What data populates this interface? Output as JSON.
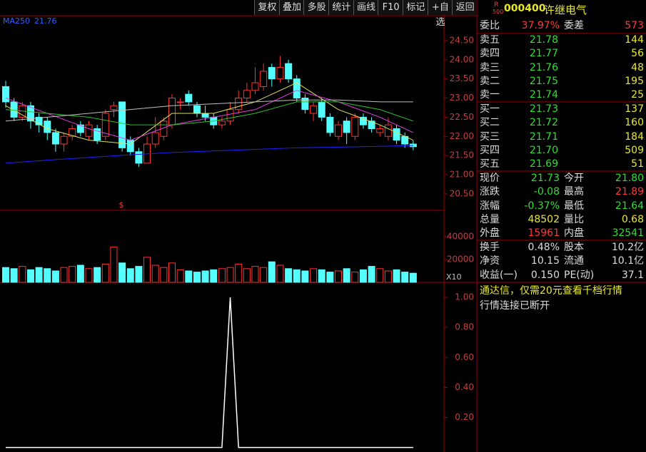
{
  "toolbar": [
    "复权",
    "叠加",
    "多股",
    "统计",
    "画线",
    "F10",
    "标记",
    "+自选",
    "返回"
  ],
  "ma250": {
    "label": "MA250",
    "value": 21.76
  },
  "marker": "$",
  "volume_scale": "X10",
  "chart_data": {
    "type": "candlestick",
    "open": [
      23.3,
      22.9,
      22.5,
      22.8,
      22.5,
      22.4,
      22.1,
      21.8,
      22.0,
      22.3,
      22.0,
      22.2,
      22.0,
      22.7,
      22.9,
      21.9,
      21.6,
      21.3,
      21.8,
      22.0,
      22.3,
      22.9,
      23.1,
      22.8,
      22.6,
      22.5,
      22.3,
      22.4,
      22.7,
      23.0,
      23.2,
      23.3,
      23.8,
      23.5,
      23.9,
      23.5,
      23.0,
      22.6,
      22.9,
      22.5,
      22.0,
      22.4,
      22.0,
      22.5,
      22.4,
      22.1,
      22.0,
      22.2,
      22.0,
      21.8
    ],
    "close": [
      22.9,
      22.5,
      22.8,
      22.4,
      22.3,
      22.1,
      21.8,
      22.0,
      22.2,
      22.1,
      22.3,
      21.9,
      22.6,
      22.8,
      21.7,
      21.6,
      21.3,
      21.8,
      22.1,
      22.4,
      23.0,
      22.9,
      22.9,
      22.6,
      22.5,
      22.3,
      22.4,
      22.7,
      23.0,
      23.2,
      23.4,
      23.7,
      23.5,
      23.8,
      23.5,
      23.0,
      22.7,
      22.8,
      22.5,
      22.1,
      22.3,
      22.1,
      22.5,
      22.3,
      22.2,
      22.2,
      22.3,
      21.9,
      21.8,
      21.73
    ],
    "high": [
      23.45,
      23.0,
      22.9,
      22.9,
      22.6,
      22.5,
      22.2,
      22.1,
      22.3,
      22.4,
      22.4,
      22.3,
      22.7,
      22.9,
      22.9,
      22.0,
      21.7,
      22.0,
      22.5,
      22.5,
      23.1,
      23.0,
      23.2,
      22.9,
      22.8,
      22.6,
      22.5,
      22.9,
      23.2,
      23.4,
      23.8,
      23.9,
      23.9,
      24.1,
      24.0,
      23.6,
      23.1,
      22.9,
      23.0,
      22.6,
      22.4,
      22.5,
      22.6,
      22.6,
      22.5,
      22.3,
      22.5,
      22.3,
      22.1,
      21.89
    ],
    "low": [
      22.75,
      22.4,
      22.4,
      22.2,
      22.1,
      21.9,
      21.6,
      21.6,
      21.9,
      22.0,
      21.9,
      21.8,
      21.9,
      22.5,
      21.6,
      21.5,
      21.2,
      21.3,
      21.7,
      21.9,
      22.2,
      22.7,
      22.8,
      22.5,
      22.4,
      22.2,
      22.2,
      22.3,
      22.6,
      22.9,
      23.1,
      23.2,
      23.3,
      23.4,
      23.4,
      22.9,
      22.6,
      22.4,
      22.4,
      22.0,
      21.9,
      21.8,
      21.9,
      22.2,
      22.1,
      22.0,
      21.9,
      21.8,
      21.7,
      21.64
    ],
    "ylim": [
      20.07,
      25.15
    ],
    "yticks": [
      {
        "value": 24.5,
        "label": "24.50"
      },
      {
        "value": 24,
        "label": "24.00"
      },
      {
        "value": 23.5,
        "label": "23.50"
      },
      {
        "value": 23,
        "label": "23.00"
      },
      {
        "value": 22.5,
        "label": "22.50"
      },
      {
        "value": 22,
        "label": "22.00"
      },
      {
        "value": 21.5,
        "label": "21.50"
      },
      {
        "value": 21,
        "label": "21.00"
      },
      {
        "value": 20.5,
        "label": "20.50"
      }
    ],
    "lines": [
      {
        "color": "#2020ff",
        "x": [
          0,
          5,
          10,
          15,
          20,
          25,
          30,
          35,
          40,
          45,
          49
        ],
        "values": [
          21.3,
          21.38,
          21.45,
          21.52,
          21.58,
          21.62,
          21.66,
          21.7,
          21.72,
          21.74,
          21.76
        ]
      },
      {
        "color": "#e0e060",
        "x": [
          0,
          5,
          10,
          15,
          20,
          25,
          30,
          35,
          40,
          45,
          49
        ],
        "values": [
          22.8,
          22.2,
          21.9,
          21.8,
          22.6,
          22.6,
          22.9,
          23.4,
          22.7,
          22.3,
          21.9
        ]
      },
      {
        "color": "#e040e0",
        "x": [
          0,
          5,
          10,
          15,
          20,
          25,
          30,
          35,
          40,
          45,
          49
        ],
        "values": [
          23.0,
          22.6,
          22.2,
          21.9,
          22.3,
          22.5,
          22.7,
          23.2,
          22.9,
          22.5,
          22.1
        ]
      },
      {
        "color": "#30c030",
        "x": [
          0,
          5,
          10,
          15,
          20,
          25,
          30,
          35,
          40,
          45,
          49
        ],
        "values": [
          22.7,
          22.6,
          22.5,
          22.3,
          22.3,
          22.4,
          22.6,
          22.9,
          22.9,
          22.7,
          22.4
        ]
      },
      {
        "color": "#c0c0c0",
        "x": [
          0,
          5,
          10,
          15,
          20,
          25,
          30,
          35,
          40,
          45,
          49
        ],
        "values": [
          22.4,
          22.5,
          22.6,
          22.7,
          22.8,
          22.85,
          22.9,
          22.95,
          22.95,
          22.9,
          22.9
        ]
      }
    ],
    "volume": [
      13000,
      12000,
      14000,
      11000,
      13000,
      12000,
      10000,
      13000,
      14000,
      15000,
      12000,
      13000,
      16000,
      31000,
      17000,
      12000,
      14000,
      22000,
      15000,
      13000,
      17000,
      11000,
      10000,
      9000,
      10000,
      11000,
      12000,
      13000,
      16000,
      12000,
      14000,
      13000,
      18000,
      15000,
      12000,
      11000,
      10000,
      12000,
      11000,
      9000,
      10000,
      12000,
      9000,
      11000,
      14000,
      12000,
      10000,
      11000,
      9000,
      8000
    ],
    "vlim": [
      0,
      62500
    ],
    "vticks": [
      40000,
      20000
    ],
    "indicator": [
      0,
      0,
      0,
      0,
      0,
      0,
      0,
      0,
      0,
      0,
      0,
      0,
      0,
      0,
      0,
      0,
      0,
      0,
      0,
      0,
      0,
      0,
      0,
      0,
      0,
      0,
      0,
      1,
      0,
      0,
      0,
      0,
      0,
      0,
      0,
      0,
      0,
      0,
      0,
      0,
      0,
      0,
      0,
      0,
      0,
      0,
      0,
      0,
      0,
      0
    ],
    "ilim": [
      -0.03,
      1.1
    ],
    "iticks": [
      {
        "value": 1,
        "label": "1.00"
      },
      {
        "value": 0.8,
        "label": "0.80"
      },
      {
        "value": 0.6,
        "label": "0.60"
      },
      {
        "value": 0.4,
        "label": "0.40"
      },
      {
        "value": 0.2,
        "label": "0.20"
      }
    ]
  },
  "quote": {
    "badge_top": "R",
    "badge_bottom": "500",
    "code": "000400",
    "name": "许继电气",
    "ratio": [
      "委比",
      "37.97%",
      "委差",
      "573"
    ],
    "sell": [
      [
        "卖五",
        "21.78",
        "144"
      ],
      [
        "卖四",
        "21.77",
        "56"
      ],
      [
        "卖三",
        "21.76",
        "48"
      ],
      [
        "卖二",
        "21.75",
        "195"
      ],
      [
        "卖一",
        "21.74",
        "25"
      ]
    ],
    "buy": [
      [
        "买一",
        "21.73",
        "137"
      ],
      [
        "买二",
        "21.72",
        "160"
      ],
      [
        "买三",
        "21.71",
        "184"
      ],
      [
        "买四",
        "21.70",
        "509"
      ],
      [
        "买五",
        "21.69",
        "51"
      ]
    ],
    "stats": [
      [
        "现价",
        "21.73",
        "今开",
        "21.80"
      ],
      [
        "涨跌",
        "-0.08",
        "最高",
        "21.89"
      ],
      [
        "涨幅",
        "-0.37%",
        "最低",
        "21.64"
      ],
      [
        "总量",
        "48502",
        "量比",
        "0.68"
      ],
      [
        "外盘",
        "15961",
        "内盘",
        "32541"
      ]
    ],
    "info": [
      [
        "换手",
        "0.48%",
        "股本",
        "10.2亿"
      ],
      [
        "净资",
        "10.15",
        "流通",
        "10.1亿"
      ],
      [
        "收益(一)",
        "0.150",
        "PE(动)",
        "37.1"
      ]
    ],
    "messages": [
      "通达信，仅需20元查看千档行情",
      "行情连接已断开"
    ]
  }
}
